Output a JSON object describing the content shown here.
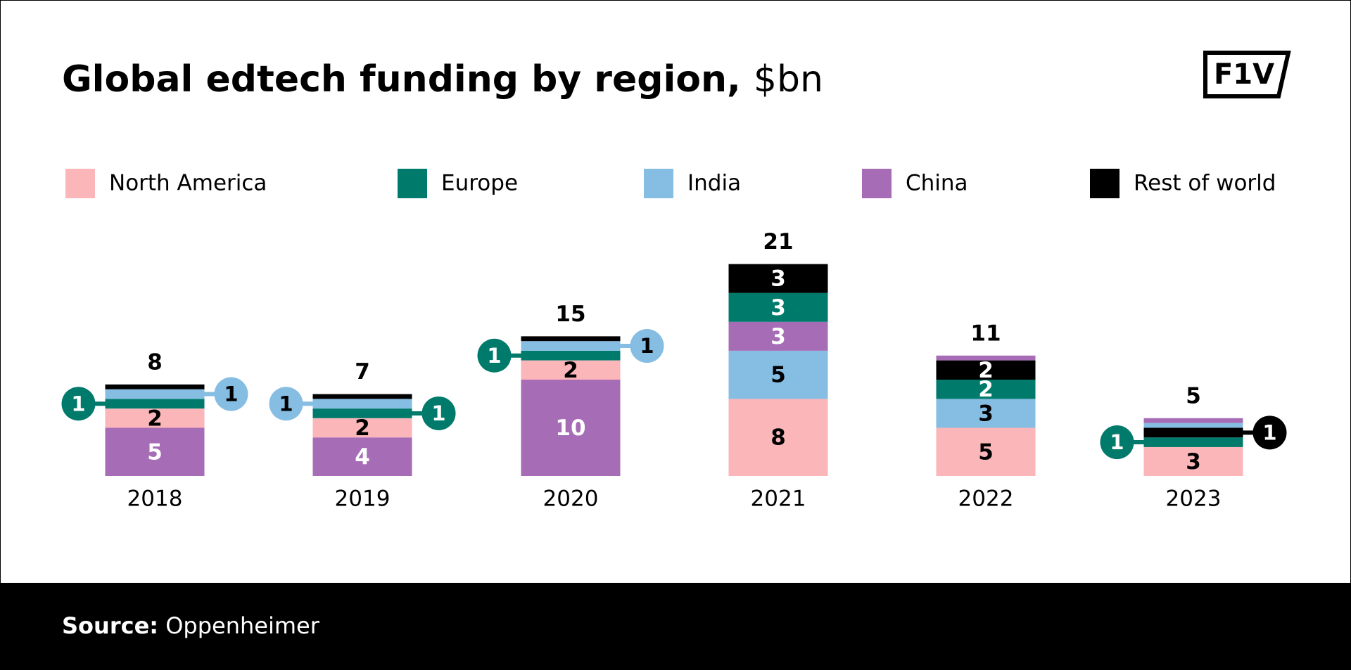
{
  "chart_data": {
    "type": "stacked-bar",
    "title": "Global edtech funding by region,",
    "title_unit": "$bn",
    "logo": "F1V",
    "source_label": "Source:",
    "source": "Oppenheimer",
    "series": [
      {
        "name": "North America",
        "color": "#fbb6ba"
      },
      {
        "name": "Europe",
        "color": "#007a6b"
      },
      {
        "name": "India",
        "color": "#86bde3"
      },
      {
        "name": "China",
        "color": "#a66db6"
      },
      {
        "name": "Rest of world",
        "color": "#000000"
      }
    ],
    "bars": [
      {
        "category": "2018",
        "total": 8,
        "segments": [
          {
            "region": "China",
            "value": 5,
            "label_position": "inside"
          },
          {
            "region": "North America",
            "value": 2,
            "label_position": "inside"
          },
          {
            "region": "Europe",
            "value": 1,
            "label_position": "left"
          },
          {
            "region": "India",
            "value": 1,
            "label_position": "right"
          },
          {
            "region": "Rest of world",
            "value": 0.5,
            "label_position": "none"
          }
        ]
      },
      {
        "category": "2019",
        "total": 7,
        "segments": [
          {
            "region": "China",
            "value": 4,
            "label_position": "inside"
          },
          {
            "region": "North America",
            "value": 2,
            "label_position": "inside"
          },
          {
            "region": "Europe",
            "value": 1,
            "label_position": "right"
          },
          {
            "region": "India",
            "value": 1,
            "label_position": "left"
          },
          {
            "region": "Rest of world",
            "value": 0.5,
            "label_position": "none"
          }
        ]
      },
      {
        "category": "2020",
        "total": 15,
        "segments": [
          {
            "region": "China",
            "value": 10,
            "label_position": "inside"
          },
          {
            "region": "North America",
            "value": 2,
            "label_position": "inside"
          },
          {
            "region": "Europe",
            "value": 1,
            "label_position": "left"
          },
          {
            "region": "India",
            "value": 1,
            "label_position": "right"
          },
          {
            "region": "Rest of world",
            "value": 0.5,
            "label_position": "none"
          }
        ]
      },
      {
        "category": "2021",
        "total": 21,
        "segments": [
          {
            "region": "North America",
            "value": 8,
            "label_position": "inside"
          },
          {
            "region": "India",
            "value": 5,
            "label_position": "inside"
          },
          {
            "region": "China",
            "value": 3,
            "label_position": "inside"
          },
          {
            "region": "Europe",
            "value": 3,
            "label_position": "inside"
          },
          {
            "region": "Rest of world",
            "value": 3,
            "label_position": "inside"
          }
        ]
      },
      {
        "category": "2022",
        "total": 11,
        "segments": [
          {
            "region": "North America",
            "value": 5,
            "label_position": "inside"
          },
          {
            "region": "India",
            "value": 3,
            "label_position": "inside"
          },
          {
            "region": "Europe",
            "value": 2,
            "label_position": "inside"
          },
          {
            "region": "Rest of world",
            "value": 2,
            "label_position": "inside"
          },
          {
            "region": "China",
            "value": 0.5,
            "label_position": "none"
          }
        ]
      },
      {
        "category": "2023",
        "total": 5,
        "segments": [
          {
            "region": "North America",
            "value": 3,
            "label_position": "inside"
          },
          {
            "region": "Europe",
            "value": 1,
            "label_position": "left"
          },
          {
            "region": "Rest of world",
            "value": 1,
            "label_position": "right"
          },
          {
            "region": "India",
            "value": 0.5,
            "label_position": "none"
          },
          {
            "region": "China",
            "value": 0.5,
            "label_position": "none"
          }
        ]
      }
    ]
  }
}
